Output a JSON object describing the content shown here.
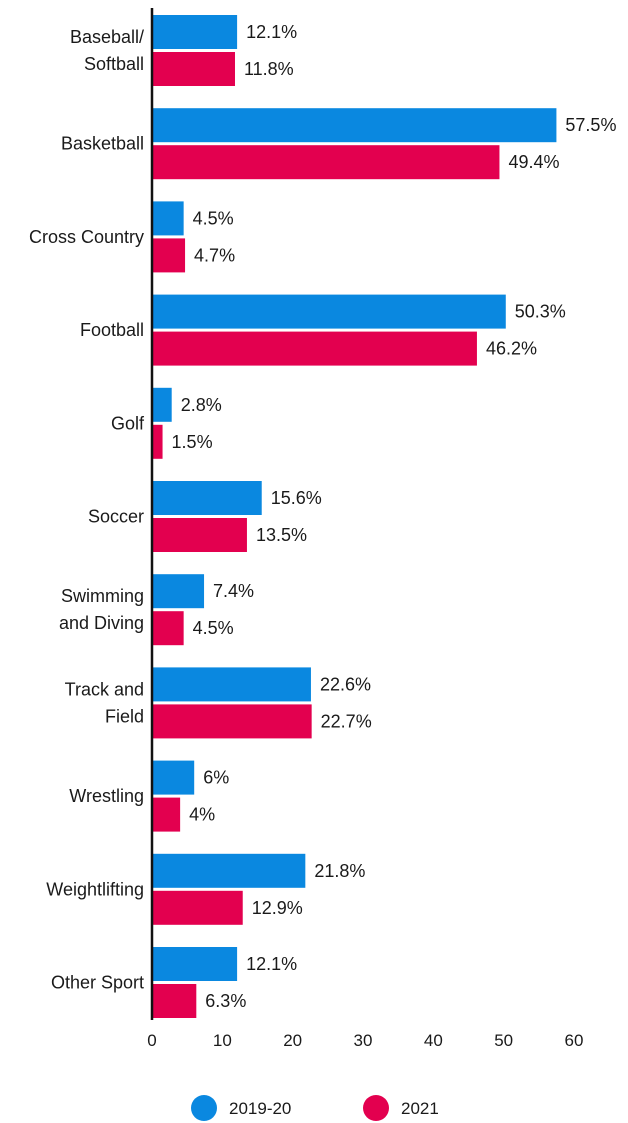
{
  "chart_data": {
    "type": "bar",
    "orientation": "horizontal",
    "categories": [
      [
        "Baseball/",
        "Softball"
      ],
      [
        "Basketball"
      ],
      [
        "Cross Country"
      ],
      [
        "Football"
      ],
      [
        "Golf"
      ],
      [
        "Soccer"
      ],
      [
        "Swimming",
        "and Diving"
      ],
      [
        "Track and",
        "Field"
      ],
      [
        "Wrestling"
      ],
      [
        "Weightlifting"
      ],
      [
        "Other Sport"
      ]
    ],
    "series": [
      {
        "name": "2019-20",
        "color": "#0a88e0",
        "values": [
          12.1,
          57.5,
          4.5,
          50.3,
          2.8,
          15.6,
          7.4,
          22.6,
          6,
          21.8,
          12.1
        ],
        "labels": [
          "12.1%",
          "57.5%",
          "4.5%",
          "50.3%",
          "2.8%",
          "15.6%",
          "7.4%",
          "22.6%",
          "6%",
          "21.8%",
          "12.1%"
        ]
      },
      {
        "name": "2021",
        "color": "#e3004f",
        "values": [
          11.8,
          49.4,
          4.7,
          46.2,
          1.5,
          13.5,
          4.5,
          22.7,
          4,
          12.9,
          6.3
        ],
        "labels": [
          "11.8%",
          "49.4%",
          "4.7%",
          "46.2%",
          "1.5%",
          "13.5%",
          "4.5%",
          "22.7%",
          "4%",
          "12.9%",
          "6.3%"
        ]
      }
    ],
    "xlim": [
      0,
      60
    ],
    "xticks": [
      "0",
      "10",
      "20",
      "30",
      "40",
      "50",
      "60"
    ],
    "grid": false,
    "legend_position": "bottom"
  }
}
